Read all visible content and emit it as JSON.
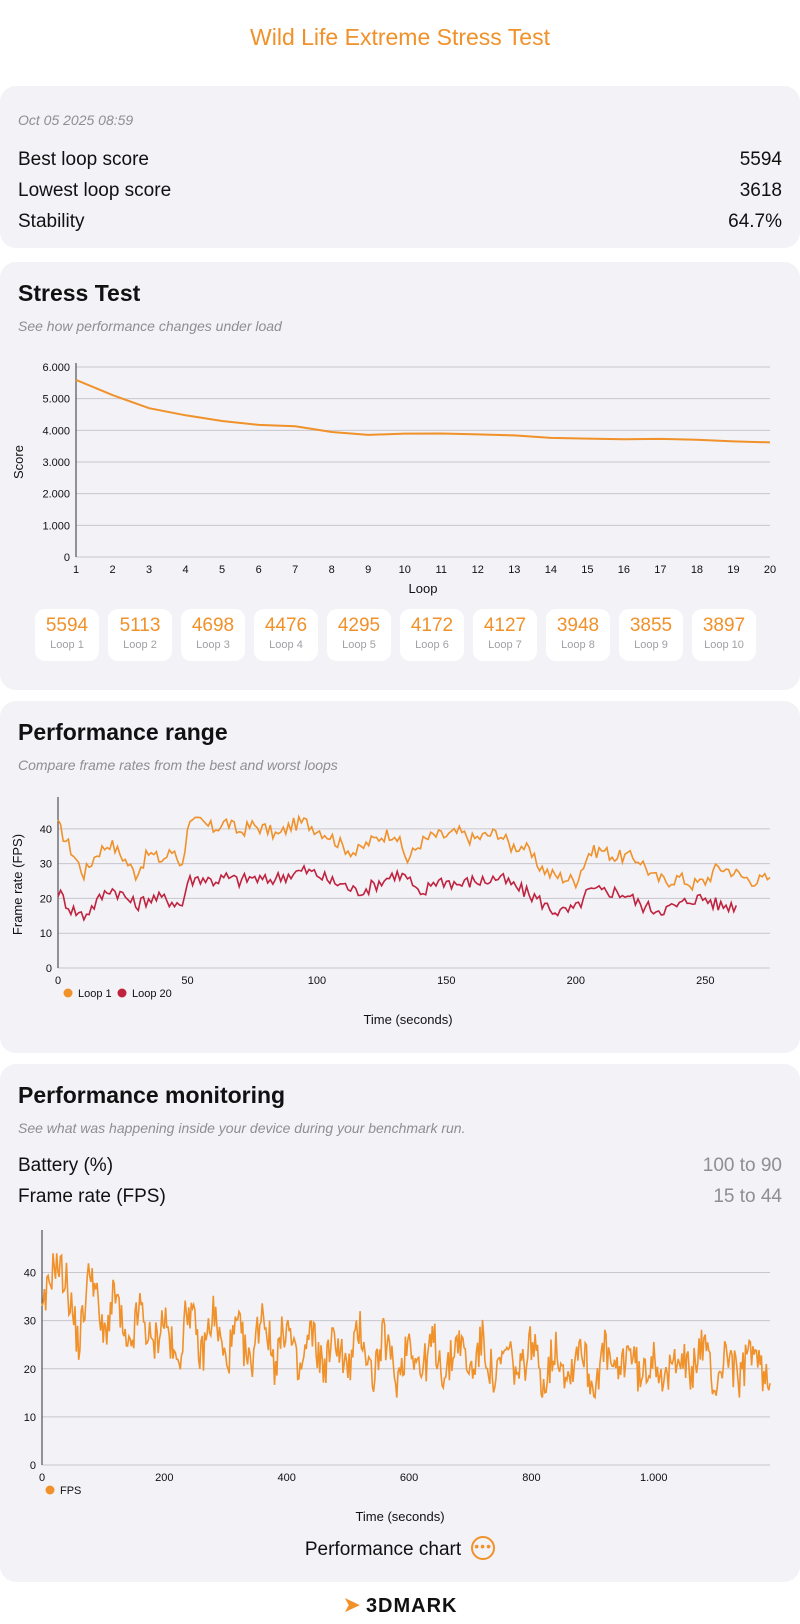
{
  "header": {
    "title": "Wild Life Extreme Stress Test"
  },
  "summary": {
    "date": "Oct 05 2025 08:59",
    "rows": [
      {
        "label": "Best loop score",
        "value": "5594"
      },
      {
        "label": "Lowest loop score",
        "value": "3618"
      },
      {
        "label": "Stability",
        "value": "64.7%"
      }
    ]
  },
  "stress_test": {
    "title": "Stress Test",
    "subtitle": "See how performance changes under load",
    "loops": [
      {
        "score": "5594",
        "label": "Loop 1"
      },
      {
        "score": "5113",
        "label": "Loop 2"
      },
      {
        "score": "4698",
        "label": "Loop 3"
      },
      {
        "score": "4476",
        "label": "Loop 4"
      },
      {
        "score": "4295",
        "label": "Loop 5"
      },
      {
        "score": "4172",
        "label": "Loop 6"
      },
      {
        "score": "4127",
        "label": "Loop 7"
      },
      {
        "score": "3948",
        "label": "Loop 8"
      },
      {
        "score": "3855",
        "label": "Loop 9"
      },
      {
        "score": "3897",
        "label": "Loop 10"
      },
      {
        "score": "",
        "label": ""
      }
    ]
  },
  "performance_range": {
    "title": "Performance range",
    "subtitle": "Compare frame rates from the best and worst loops"
  },
  "performance_monitoring": {
    "title": "Performance monitoring",
    "subtitle": "See what was happening inside your device during your benchmark run.",
    "rows": [
      {
        "label": "Battery (%)",
        "value": "100 to 90"
      },
      {
        "label": "Frame rate (FPS)",
        "value": "15 to 44"
      }
    ],
    "chart_button": "Performance chart"
  },
  "footer": {
    "logo_text": "3DMARK"
  },
  "colors": {
    "accent": "#f0912a",
    "loop20": "#c0233f",
    "card": "#f2f2f7"
  },
  "chart_data": [
    {
      "type": "line",
      "title": "Stress Test",
      "xlabel": "Loop",
      "ylabel": "Score",
      "x": [
        1,
        2,
        3,
        4,
        5,
        6,
        7,
        8,
        9,
        10,
        11,
        12,
        13,
        14,
        15,
        16,
        17,
        18,
        19,
        20
      ],
      "series": [
        {
          "name": "Score",
          "values": [
            5594,
            5113,
            4698,
            4476,
            4295,
            4172,
            4127,
            3948,
            3855,
            3897,
            3900,
            3870,
            3840,
            3760,
            3740,
            3720,
            3730,
            3700,
            3650,
            3618
          ]
        }
      ],
      "yticks": [
        "0",
        "1.000",
        "2.000",
        "3.000",
        "4.000",
        "5.000",
        "6.000"
      ],
      "ylim": [
        0,
        6000
      ],
      "xlim": [
        1,
        20
      ]
    },
    {
      "type": "line",
      "title": "Performance range",
      "xlabel": "Time (seconds)",
      "ylabel": "Frame rate (FPS)",
      "xlim": [
        0,
        275
      ],
      "ylim": [
        0,
        48
      ],
      "xticks": [
        0,
        50,
        100,
        150,
        200,
        250
      ],
      "yticks": [
        0,
        10,
        20,
        30,
        40
      ],
      "legend": "bottom-left",
      "series": [
        {
          "name": "Loop 1",
          "x": [
            0,
            5,
            10,
            15,
            20,
            25,
            30,
            35,
            40,
            45,
            48,
            50,
            55,
            60,
            65,
            70,
            75,
            80,
            85,
            90,
            95,
            100,
            105,
            110,
            115,
            120,
            125,
            130,
            135,
            140,
            145,
            150,
            155,
            160,
            165,
            170,
            175,
            180,
            185,
            190,
            195,
            200,
            205,
            210,
            215,
            220,
            225,
            230,
            235,
            240,
            245,
            250,
            255,
            260,
            265,
            270,
            275
          ],
          "values": [
            41,
            34,
            27,
            33,
            36,
            32,
            27,
            33,
            31,
            34,
            29,
            41,
            42,
            40,
            42,
            39,
            41,
            40,
            38,
            41,
            42,
            40,
            38,
            35,
            33,
            36,
            38,
            39,
            31,
            36,
            38,
            38,
            39,
            37,
            38,
            39,
            35,
            35,
            30,
            27,
            26,
            25,
            33,
            34,
            32,
            32,
            31,
            26,
            25,
            26,
            24,
            25,
            29,
            28,
            26,
            25,
            26
          ]
        },
        {
          "name": "Loop 20",
          "x": [
            0,
            5,
            10,
            15,
            20,
            25,
            30,
            35,
            40,
            45,
            48,
            50,
            55,
            60,
            65,
            70,
            75,
            80,
            85,
            90,
            95,
            100,
            105,
            110,
            115,
            120,
            125,
            130,
            135,
            140,
            145,
            150,
            155,
            160,
            165,
            170,
            175,
            180,
            185,
            190,
            195,
            200,
            205,
            210,
            215,
            220,
            225,
            230,
            235,
            240,
            245,
            250,
            255,
            260,
            262
          ],
          "values": [
            22,
            17,
            15,
            19,
            23,
            21,
            18,
            20,
            20,
            19,
            18,
            25,
            26,
            25,
            26,
            25,
            26,
            25,
            26,
            27,
            28,
            27,
            25,
            24,
            22,
            23,
            25,
            27,
            26,
            20,
            25,
            25,
            24,
            25,
            25,
            26,
            24,
            22,
            20,
            17,
            16,
            17,
            22,
            22,
            22,
            21,
            18,
            17,
            17,
            18,
            20,
            20,
            18,
            18,
            18
          ]
        }
      ]
    },
    {
      "type": "line",
      "title": "Performance monitoring",
      "xlabel": "Time (seconds)",
      "ylabel": "",
      "xlim": [
        0,
        1190
      ],
      "ylim": [
        0,
        48
      ],
      "xticks": [
        "0",
        "200",
        "400",
        "600",
        "800",
        "1.000"
      ],
      "xtick_values": [
        0,
        200,
        400,
        600,
        800,
        1000
      ],
      "yticks": [
        0,
        10,
        20,
        30,
        40
      ],
      "legend": "bottom-left",
      "series": [
        {
          "name": "FPS",
          "x": [
            0,
            20,
            40,
            60,
            80,
            100,
            120,
            140,
            160,
            180,
            200,
            220,
            240,
            260,
            280,
            300,
            320,
            340,
            360,
            380,
            400,
            420,
            440,
            460,
            480,
            500,
            520,
            540,
            560,
            580,
            600,
            620,
            640,
            660,
            680,
            700,
            720,
            740,
            760,
            780,
            800,
            820,
            840,
            860,
            880,
            900,
            920,
            940,
            960,
            980,
            1000,
            1020,
            1040,
            1060,
            1080,
            1100,
            1120,
            1140,
            1160,
            1180,
            1190
          ],
          "values": [
            30,
            43,
            38,
            25,
            42,
            26,
            36,
            22,
            33,
            24,
            31,
            20,
            34,
            22,
            32,
            21,
            29,
            20,
            33,
            21,
            30,
            18,
            28,
            20,
            27,
            19,
            29,
            18,
            27,
            17,
            27,
            19,
            26,
            18,
            27,
            19,
            26,
            17,
            24,
            18,
            26,
            17,
            25,
            18,
            26,
            16,
            24,
            18,
            25,
            17,
            24,
            16,
            25,
            18,
            26,
            16,
            24,
            17,
            25,
            18,
            17
          ]
        }
      ]
    }
  ]
}
